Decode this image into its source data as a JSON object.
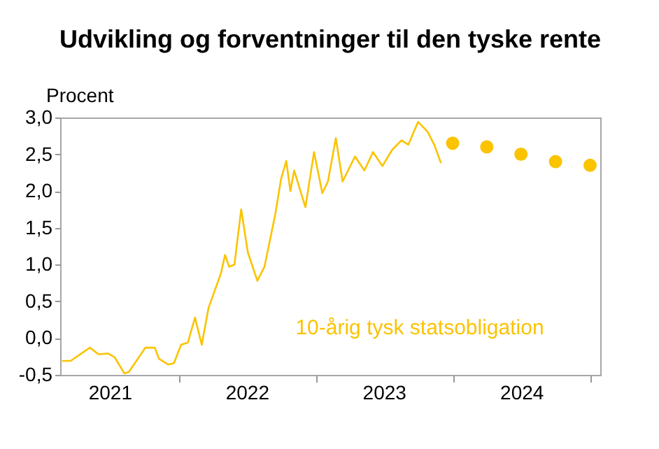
{
  "chart_data": {
    "type": "line",
    "title": "Udvikling og forventninger til den tyske rente",
    "ylabel": "Procent",
    "xlim": [
      "2021-02-20",
      "2025-01-28"
    ],
    "xticks": [
      {
        "value": "2021-07-02",
        "label": "2021"
      },
      {
        "value": "2022-01-01",
        "label": null
      },
      {
        "value": "2022-07-02",
        "label": "2022"
      },
      {
        "value": "2023-01-01",
        "label": null
      },
      {
        "value": "2023-07-02",
        "label": "2023"
      },
      {
        "value": "2024-01-01",
        "label": null
      },
      {
        "value": "2024-07-02",
        "label": "2024"
      },
      {
        "value": "2025-01-01",
        "label": null
      }
    ],
    "ylim": [
      -0.5,
      3.0
    ],
    "yticks": [
      {
        "value": -0.5,
        "label": "-0,5"
      },
      {
        "value": 0,
        "label": "0,0"
      },
      {
        "value": 0.5,
        "label": "0,5"
      },
      {
        "value": 1.0,
        "label": "1,0"
      },
      {
        "value": 1.5,
        "label": "1,5"
      },
      {
        "value": 2.0,
        "label": "2,0"
      },
      {
        "value": 2.5,
        "label": "2,5"
      },
      {
        "value": 3.0,
        "label": "3,0"
      }
    ],
    "grid": false,
    "series": [
      {
        "name": "10-årig tysk statsobligation",
        "color": "#fbc300",
        "marker": "none",
        "line_style": "solid",
        "x": [
          "2021-02-25",
          "2021-03-20",
          "2021-05-10",
          "2021-06-02",
          "2021-06-28",
          "2021-07-15",
          "2021-08-10",
          "2021-08-22",
          "2021-10-05",
          "2021-10-30",
          "2021-11-10",
          "2021-12-05",
          "2021-12-20",
          "2022-01-08",
          "2022-01-26",
          "2022-02-14",
          "2022-03-04",
          "2022-03-22",
          "2022-04-24",
          "2022-05-05",
          "2022-05-16",
          "2022-05-30",
          "2022-06-17",
          "2022-07-05",
          "2022-07-30",
          "2022-08-18",
          "2022-09-16",
          "2022-10-01",
          "2022-10-15",
          "2022-10-26",
          "2022-11-05",
          "2022-12-05",
          "2022-12-28",
          "2023-01-19",
          "2023-02-03",
          "2023-02-24",
          "2023-03-14",
          "2023-04-16",
          "2023-05-11",
          "2023-06-03",
          "2023-06-28",
          "2023-07-24",
          "2023-08-18",
          "2023-09-05",
          "2023-10-01",
          "2023-10-26",
          "2023-11-13",
          "2023-12-01"
        ],
        "values": [
          -0.31,
          -0.31,
          -0.13,
          -0.22,
          -0.21,
          -0.26,
          -0.48,
          -0.46,
          -0.13,
          -0.13,
          -0.28,
          -0.36,
          -0.34,
          -0.09,
          -0.06,
          0.28,
          -0.09,
          0.41,
          0.88,
          1.13,
          0.97,
          1.0,
          1.75,
          1.16,
          0.78,
          0.97,
          1.69,
          2.16,
          2.41,
          2.0,
          2.28,
          1.78,
          2.53,
          1.97,
          2.13,
          2.72,
          2.13,
          2.47,
          2.28,
          2.53,
          2.34,
          2.56,
          2.69,
          2.63,
          2.94,
          2.81,
          2.63,
          2.38
        ]
      },
      {
        "type": "scatter",
        "color": "#fbc300",
        "marker": "circle",
        "x": [
          "2024-01-01",
          "2024-04-01",
          "2024-07-01",
          "2024-10-01",
          "2025-01-01"
        ],
        "values": [
          2.65,
          2.6,
          2.5,
          2.4,
          2.35
        ]
      }
    ]
  }
}
